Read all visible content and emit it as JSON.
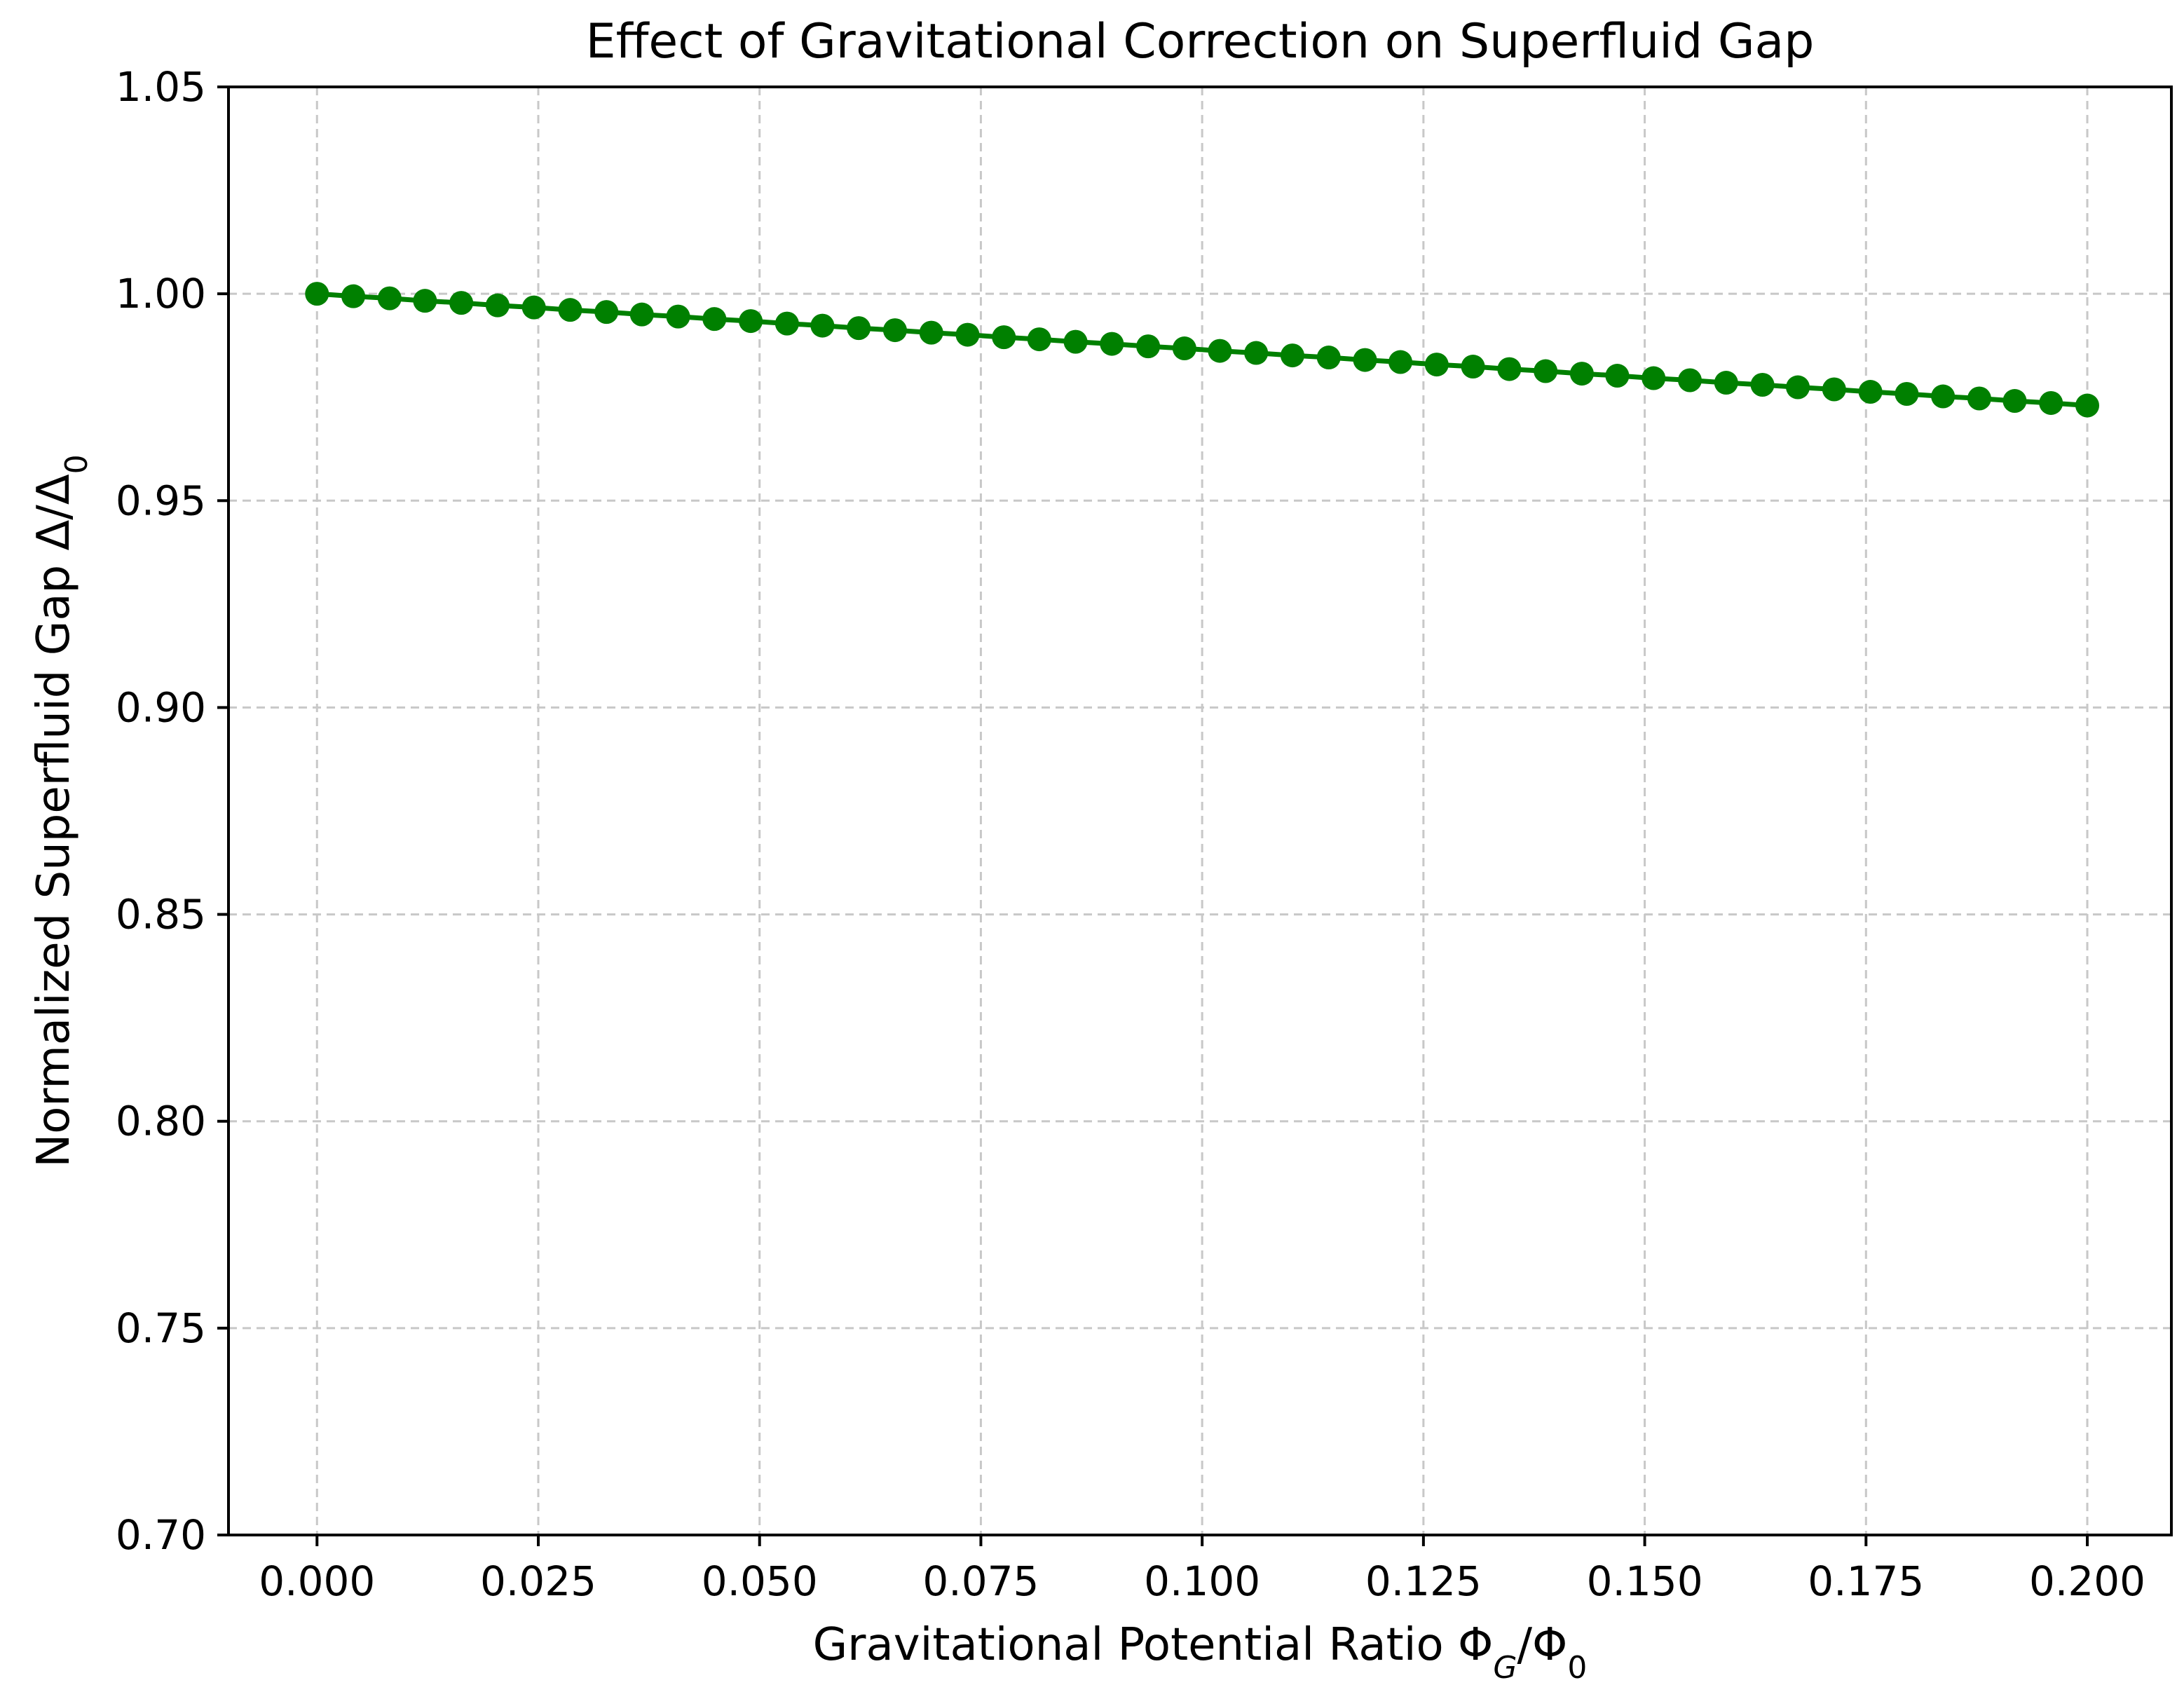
{
  "chart_data": {
    "type": "line",
    "title": "Effect of Gravitational Correction on Superfluid Gap",
    "xlabel": {
      "main": "Gravitational Potential Ratio Φ",
      "sub1": "G",
      "mid": "/Φ",
      "sub2": "0"
    },
    "ylabel": {
      "main": "Normalized Superfluid Gap Δ/Δ",
      "sub": "0"
    },
    "xlim": [
      -0.01,
      0.2095
    ],
    "ylim": [
      0.7,
      1.05
    ],
    "xticks": [
      0.0,
      0.025,
      0.05,
      0.075,
      0.1,
      0.125,
      0.15,
      0.175,
      0.2
    ],
    "xtick_labels": [
      "0.000",
      "0.025",
      "0.050",
      "0.075",
      "0.100",
      "0.125",
      "0.150",
      "0.175",
      "0.200"
    ],
    "yticks": [
      0.7,
      0.75,
      0.8,
      0.85,
      0.9,
      0.95,
      1.0,
      1.05
    ],
    "ytick_labels": [
      "0.70",
      "0.75",
      "0.80",
      "0.85",
      "0.90",
      "0.95",
      "1.00",
      "1.05"
    ],
    "grid": true,
    "legend": "none",
    "series": [
      {
        "color": "#008000",
        "marker": "circle",
        "x": [
          0.0,
          0.0041,
          0.0082,
          0.0122,
          0.0163,
          0.0204,
          0.0245,
          0.0286,
          0.0327,
          0.0367,
          0.0408,
          0.0449,
          0.049,
          0.0531,
          0.0571,
          0.0612,
          0.0653,
          0.0694,
          0.0735,
          0.0776,
          0.0816,
          0.0857,
          0.0898,
          0.0939,
          0.098,
          0.102,
          0.1061,
          0.1102,
          0.1143,
          0.1184,
          0.1224,
          0.1265,
          0.1306,
          0.1347,
          0.1388,
          0.1429,
          0.1469,
          0.151,
          0.1551,
          0.1592,
          0.1633,
          0.1673,
          0.1714,
          0.1755,
          0.1796,
          0.1837,
          0.1878,
          0.1918,
          0.1959,
          0.2
        ],
        "y": [
          1.0,
          0.9994,
          0.9989,
          0.9983,
          0.9978,
          0.9972,
          0.9967,
          0.9961,
          0.9956,
          0.995,
          0.9945,
          0.9939,
          0.9934,
          0.9928,
          0.9923,
          0.9917,
          0.9912,
          0.9906,
          0.9901,
          0.9895,
          0.989,
          0.9884,
          0.9879,
          0.9873,
          0.9868,
          0.9862,
          0.9857,
          0.9851,
          0.9846,
          0.984,
          0.9835,
          0.9829,
          0.9824,
          0.9818,
          0.9813,
          0.9807,
          0.9802,
          0.9796,
          0.9791,
          0.9785,
          0.978,
          0.9774,
          0.9769,
          0.9763,
          0.9758,
          0.9752,
          0.9747,
          0.9741,
          0.9736,
          0.973
        ]
      }
    ]
  }
}
